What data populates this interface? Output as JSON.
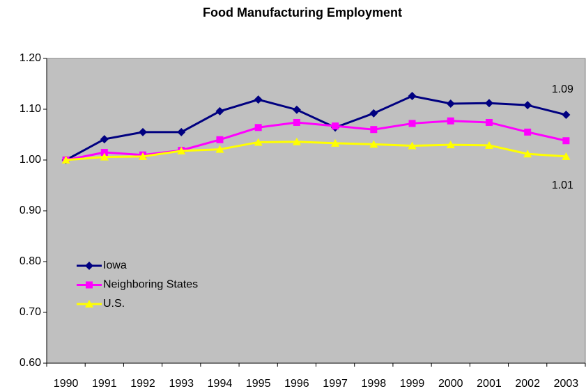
{
  "chart_data": {
    "type": "line",
    "title": "Food Manufacturing Employment",
    "categories": [
      "1990",
      "1991",
      "1992",
      "1993",
      "1994",
      "1995",
      "1996",
      "1997",
      "1998",
      "1999",
      "2000",
      "2001",
      "2002",
      "2003"
    ],
    "series": [
      {
        "name": "Iowa",
        "color": "#000080",
        "marker": "diamond",
        "values": [
          1.0,
          1.041,
          1.055,
          1.055,
          1.096,
          1.119,
          1.099,
          1.064,
          1.092,
          1.126,
          1.111,
          1.112,
          1.108,
          1.089
        ],
        "value_labels": [
          null,
          null,
          null,
          null,
          null,
          null,
          null,
          null,
          null,
          null,
          null,
          null,
          null,
          "1.09"
        ]
      },
      {
        "name": "Neighboring States",
        "color": "#ff00ff",
        "marker": "square",
        "values": [
          1.0,
          1.015,
          1.01,
          1.019,
          1.04,
          1.064,
          1.074,
          1.067,
          1.06,
          1.072,
          1.077,
          1.074,
          1.055,
          1.038
        ]
      },
      {
        "name": "U.S.",
        "color": "#ffff00",
        "marker": "triangle",
        "values": [
          1.0,
          1.006,
          1.007,
          1.018,
          1.021,
          1.035,
          1.036,
          1.033,
          1.031,
          1.028,
          1.03,
          1.029,
          1.012,
          1.007
        ],
        "value_labels": [
          null,
          null,
          null,
          null,
          null,
          null,
          null,
          null,
          null,
          null,
          null,
          null,
          null,
          "1.01"
        ]
      }
    ],
    "ylim": [
      0.6,
      1.2
    ],
    "yticks": [
      {
        "value": 0.6,
        "label": "0.60"
      },
      {
        "value": 0.7,
        "label": "0.70"
      },
      {
        "value": 0.8,
        "label": "0.80"
      },
      {
        "value": 0.9,
        "label": "0.90"
      },
      {
        "value": 1.0,
        "label": "1.00"
      },
      {
        "value": 1.1,
        "label": "1.10"
      },
      {
        "value": 1.2,
        "label": "1.20"
      }
    ],
    "grid": false,
    "legend": "lower-left",
    "plot_background": "#c0c0c0"
  }
}
